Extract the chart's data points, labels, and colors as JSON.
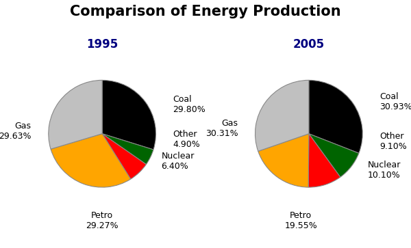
{
  "title": "Comparison of Energy Production",
  "title_fontsize": 15,
  "title_fontweight": "bold",
  "charts": [
    {
      "year": "1995",
      "labels": [
        "Coal",
        "Other",
        "Nuclear",
        "Petro",
        "Gas"
      ],
      "values": [
        29.8,
        4.9,
        6.4,
        29.27,
        29.63
      ],
      "colors": [
        "#000000",
        "#006400",
        "#ff0000",
        "#ffa500",
        "#c0c0c0"
      ],
      "startangle": 90
    },
    {
      "year": "2005",
      "labels": [
        "Coal",
        "Other",
        "Nuclear",
        "Petro",
        "Gas"
      ],
      "values": [
        30.93,
        9.1,
        10.1,
        19.55,
        30.31
      ],
      "colors": [
        "#000000",
        "#006400",
        "#ff0000",
        "#ffa500",
        "#c0c0c0"
      ],
      "startangle": 90
    }
  ],
  "year_label_color": "#000080",
  "year_fontsize": 12,
  "label_fontsize": 9,
  "background_color": "#ffffff",
  "label_positions_1995": {
    "Coal": [
      1.32,
      0.55,
      "left",
      "center"
    ],
    "Other": [
      1.32,
      -0.1,
      "left",
      "center"
    ],
    "Nuclear": [
      1.1,
      -0.52,
      "left",
      "center"
    ],
    "Petro": [
      0.0,
      -1.45,
      "center",
      "top"
    ],
    "Gas": [
      -1.32,
      0.05,
      "right",
      "center"
    ]
  },
  "label_positions_2005": {
    "Coal": [
      1.32,
      0.6,
      "left",
      "center"
    ],
    "Other": [
      1.32,
      -0.15,
      "left",
      "center"
    ],
    "Nuclear": [
      1.1,
      -0.68,
      "left",
      "center"
    ],
    "Petro": [
      -0.15,
      -1.45,
      "center",
      "top"
    ],
    "Gas": [
      -1.32,
      0.1,
      "right",
      "center"
    ]
  }
}
